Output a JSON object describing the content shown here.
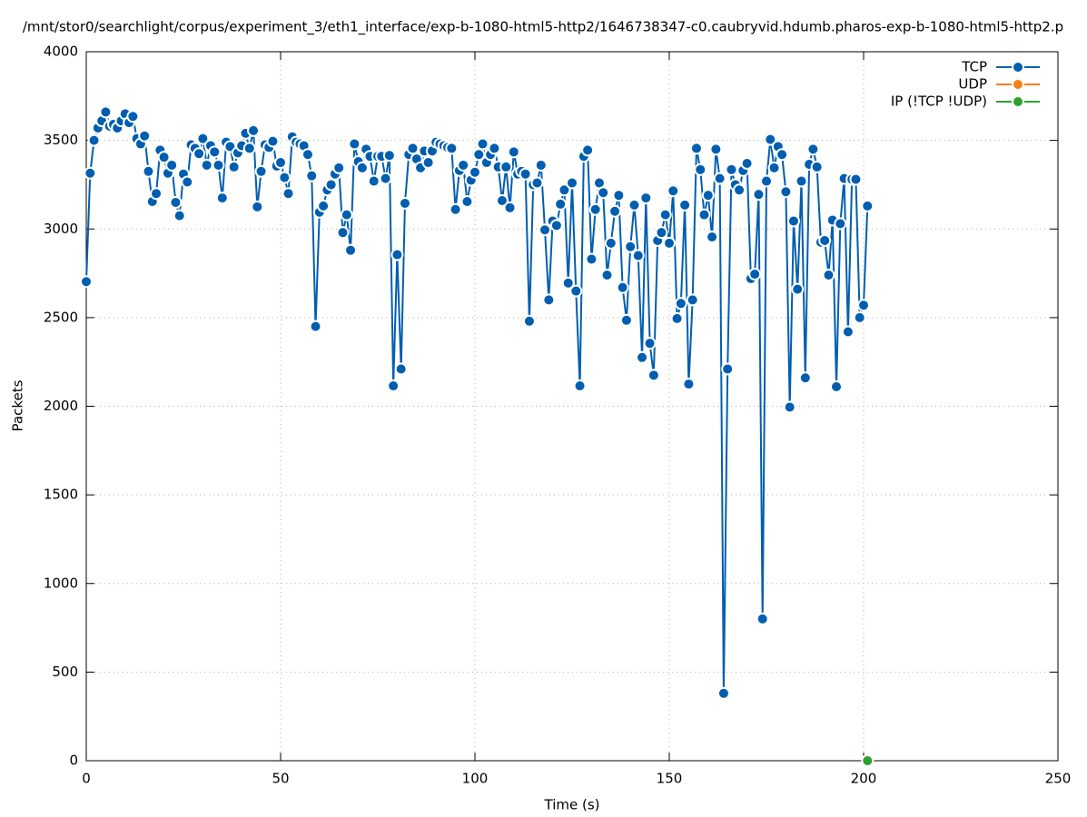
{
  "chart_data": {
    "type": "line",
    "title": "/mnt/stor0/searchlight/corpus/experiment_3/eth1_interface/exp-b-1080-html5-http2/1646738347-c0.caubryvid.hdumb.pharos-exp-b-1080-html5-http2.p",
    "xlabel": "Time (s)",
    "ylabel": "Packets",
    "xlim": [
      0,
      250
    ],
    "xticks": [
      0,
      50,
      100,
      150,
      200,
      250
    ],
    "ylim": [
      0,
      4000
    ],
    "yticks": [
      0,
      500,
      1000,
      1500,
      2000,
      2500,
      3000,
      3500,
      4000
    ],
    "grid": true,
    "legend": "top-right",
    "series": [
      {
        "name": "TCP",
        "color": "#005eb0",
        "x": [
          0,
          1,
          2,
          3,
          4,
          5,
          6,
          7,
          8,
          9,
          10,
          11,
          12,
          13,
          14,
          15,
          16,
          17,
          18,
          19,
          20,
          21,
          22,
          23,
          24,
          25,
          26,
          27,
          28,
          29,
          30,
          31,
          32,
          33,
          34,
          35,
          36,
          37,
          38,
          39,
          40,
          41,
          42,
          43,
          44,
          45,
          46,
          47,
          48,
          49,
          50,
          51,
          52,
          53,
          54,
          55,
          56,
          57,
          58,
          59,
          60,
          61,
          62,
          63,
          64,
          65,
          66,
          67,
          68,
          69,
          70,
          71,
          72,
          73,
          74,
          75,
          76,
          77,
          78,
          79,
          80,
          81,
          82,
          83,
          84,
          85,
          86,
          87,
          88,
          89,
          90,
          91,
          92,
          93,
          94,
          95,
          96,
          97,
          98,
          99,
          100,
          101,
          102,
          103,
          104,
          105,
          106,
          107,
          108,
          109,
          110,
          111,
          112,
          113,
          114,
          115,
          116,
          117,
          118,
          119,
          120,
          121,
          122,
          123,
          124,
          125,
          126,
          127,
          128,
          129,
          130,
          131,
          132,
          133,
          134,
          135,
          136,
          137,
          138,
          139,
          140,
          141,
          142,
          143,
          144,
          145,
          146,
          147,
          148,
          149,
          150,
          151,
          152,
          153,
          154,
          155,
          156,
          157,
          158,
          159,
          160,
          161,
          162,
          163,
          164,
          165,
          166,
          167,
          168,
          169,
          170,
          171,
          172,
          173,
          174,
          175,
          176,
          177,
          178,
          179,
          180,
          181,
          182,
          183,
          184,
          185,
          186,
          187,
          188,
          189,
          190,
          191,
          192,
          193,
          194,
          195,
          196,
          197,
          198,
          199,
          200,
          201
        ],
        "values": [
          2703,
          3315,
          3500,
          3570,
          3610,
          3660,
          3580,
          3590,
          3570,
          3610,
          3650,
          3600,
          3635,
          3510,
          3480,
          3525,
          3325,
          3155,
          3200,
          3445,
          3405,
          3315,
          3360,
          3150,
          3075,
          3310,
          3265,
          3475,
          3455,
          3425,
          3510,
          3360,
          3470,
          3435,
          3360,
          3175,
          3490,
          3465,
          3350,
          3430,
          3470,
          3540,
          3455,
          3555,
          3125,
          3325,
          3475,
          3460,
          3495,
          3355,
          3375,
          3290,
          3200,
          3520,
          3490,
          3480,
          3470,
          3420,
          3300,
          2450,
          3095,
          3130,
          3220,
          3250,
          3310,
          3345,
          2980,
          3080,
          2880,
          3480,
          3380,
          3345,
          3450,
          3410,
          3270,
          3410,
          3410,
          3285,
          3415,
          2115,
          2855,
          2210,
          3145,
          3420,
          3455,
          3395,
          3345,
          3440,
          3375,
          3440,
          3490,
          3480,
          3470,
          3460,
          3455,
          3110,
          3330,
          3360,
          3155,
          3275,
          3320,
          3420,
          3480,
          3375,
          3420,
          3455,
          3350,
          3160,
          3350,
          3120,
          3435,
          3310,
          3325,
          3310,
          2480,
          3250,
          3260,
          3360,
          2995,
          2600,
          3045,
          3020,
          3140,
          3220,
          2695,
          3260,
          2650,
          2115,
          3410,
          3445,
          2830,
          3110,
          3260,
          3205,
          2740,
          2920,
          3100,
          3190,
          2670,
          2485,
          2900,
          3135,
          2850,
          2275,
          3175,
          2355,
          2175,
          2935,
          2980,
          3080,
          2920,
          3215,
          2495,
          2580,
          3135,
          2125,
          2600,
          3455,
          3335,
          3080,
          3190,
          2955,
          3450,
          3285,
          380,
          2210,
          3335,
          3250,
          3220,
          3330,
          3370,
          2720,
          2745,
          3195,
          800,
          3270,
          3505,
          3345,
          3465,
          3420,
          3210,
          1995,
          3045,
          2660,
          3270,
          2160,
          3365,
          3450,
          3350,
          2925,
          2935,
          2740,
          3050,
          2110,
          3030,
          3285,
          2420,
          3280,
          3280,
          2500,
          2570,
          3130
        ]
      },
      {
        "name": "UDP",
        "color": "#f57f17",
        "x": [],
        "values": []
      },
      {
        "name": "IP (!TCP  !UDP)",
        "color": "#2ca02c",
        "x": [
          201
        ],
        "values": [
          0
        ]
      }
    ]
  }
}
